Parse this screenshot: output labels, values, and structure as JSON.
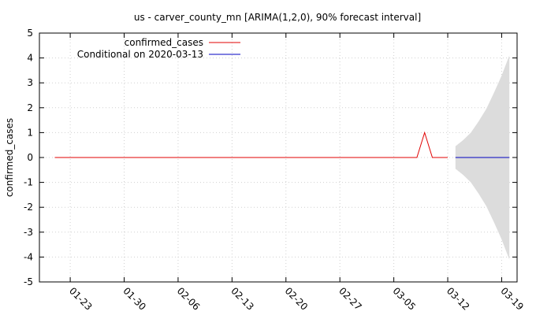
{
  "chart_data": {
    "type": "line",
    "title": "us - carver_county_mn [ARIMA(1,2,0), 90% forecast interval]",
    "xlabel": "",
    "ylabel": "confirmed_cases",
    "x_type": "date",
    "xlim": [
      "2020-01-19",
      "2020-03-21"
    ],
    "ylim": [
      -5,
      5
    ],
    "x_ticks": [
      "2020-01-23",
      "2020-01-30",
      "2020-02-06",
      "2020-02-13",
      "2020-02-20",
      "2020-02-27",
      "2020-03-05",
      "2020-03-12",
      "2020-03-19"
    ],
    "x_tick_labels": [
      "01-23",
      "01-30",
      "02-06",
      "02-13",
      "02-20",
      "02-27",
      "03-05",
      "03-12",
      "03-19"
    ],
    "y_ticks": [
      -5,
      -4,
      -3,
      -2,
      -1,
      0,
      1,
      2,
      3,
      4,
      5
    ],
    "grid": true,
    "legend_position": "top-left",
    "colors": {
      "observed": "#e00000",
      "forecast": "#0000c0",
      "interval": "#dcdcdc"
    },
    "series": [
      {
        "name": "confirmed_cases",
        "role": "observed",
        "x": [
          "2020-01-21",
          "2020-03-08",
          "2020-03-09",
          "2020-03-10",
          "2020-03-11",
          "2020-03-12"
        ],
        "values": [
          0,
          0,
          1,
          0,
          0,
          0
        ]
      },
      {
        "name": "Conditional on 2020-03-13",
        "role": "forecast",
        "x": [
          "2020-03-13",
          "2020-03-14",
          "2020-03-15",
          "2020-03-16",
          "2020-03-17",
          "2020-03-18",
          "2020-03-19",
          "2020-03-20"
        ],
        "values": [
          0,
          0,
          0,
          0,
          0,
          0,
          0,
          0
        ],
        "upper": [
          0.45,
          0.7,
          1.0,
          1.45,
          1.95,
          2.6,
          3.3,
          4.1
        ],
        "lower": [
          -0.45,
          -0.7,
          -1.0,
          -1.45,
          -1.95,
          -2.6,
          -3.3,
          -4.1
        ]
      }
    ]
  }
}
